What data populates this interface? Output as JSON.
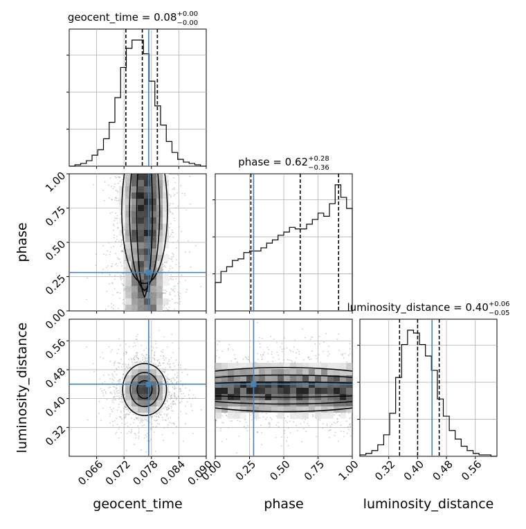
{
  "chart_data": {
    "type": "corner",
    "parameters": [
      {
        "name": "geocent_time",
        "label": "geocent_time",
        "range": [
          0.06,
          0.09
        ],
        "ticks": [
          0.066,
          0.072,
          0.078,
          0.084,
          0.09
        ],
        "tick_labels": [
          "0.066",
          "0.072",
          "0.078",
          "0.084",
          "0.090"
        ],
        "title_base": "geocent_time = 0.08",
        "title_sup": "+0.00",
        "title_sub": "−0.00",
        "quantiles": [
          0.0724,
          0.076,
          0.0793
        ],
        "truth": 0.0774,
        "hist": [
          0.0,
          0.01,
          0.02,
          0.04,
          0.08,
          0.12,
          0.2,
          0.32,
          0.5,
          0.72,
          0.86,
          0.92,
          0.92,
          0.82,
          0.62,
          0.44,
          0.3,
          0.18,
          0.1,
          0.05,
          0.03,
          0.02,
          0.01,
          0.0
        ]
      },
      {
        "name": "phase",
        "label": "phase",
        "range": [
          0.0,
          1.0
        ],
        "ticks": [
          0.0,
          0.25,
          0.5,
          0.75,
          1.0
        ],
        "tick_labels": [
          "0.00",
          "0.25",
          "0.50",
          "0.75",
          "1.00"
        ],
        "title_base": "phase = 0.62",
        "title_sup": "+0.28",
        "title_sub": "−0.36",
        "quantiles": [
          0.26,
          0.62,
          0.9
        ],
        "truth": 0.28,
        "hist": [
          0.18,
          0.25,
          0.28,
          0.32,
          0.33,
          0.37,
          0.38,
          0.38,
          0.4,
          0.43,
          0.45,
          0.48,
          0.5,
          0.53,
          0.52,
          0.52,
          0.55,
          0.58,
          0.62,
          0.6,
          0.68,
          0.8,
          0.72,
          0.65
        ]
      },
      {
        "name": "luminosity_distance",
        "label": "luminosity_distance",
        "range": [
          0.24,
          0.62
        ],
        "ticks": [
          0.32,
          0.4,
          0.48,
          0.56
        ],
        "tick_labels": [
          "0.32",
          "0.40",
          "0.48",
          "0.56"
        ],
        "title_base": "luminosity_distance = 0.40",
        "title_sup": "+0.06",
        "title_sub": "−0.05",
        "quantiles": [
          0.35,
          0.4,
          0.46
        ],
        "truth": 0.44,
        "hist": [
          0.01,
          0.02,
          0.04,
          0.08,
          0.15,
          0.3,
          0.55,
          0.78,
          0.88,
          0.86,
          0.78,
          0.7,
          0.6,
          0.4,
          0.28,
          0.18,
          0.12,
          0.07,
          0.04,
          0.02,
          0.01,
          0.01,
          0.0
        ]
      }
    ],
    "colors": {
      "truth": "#4682b4",
      "hist": "#000000",
      "quantile": "#000000",
      "grid": "#b0b0b0",
      "points": "#a0a0a0"
    }
  }
}
